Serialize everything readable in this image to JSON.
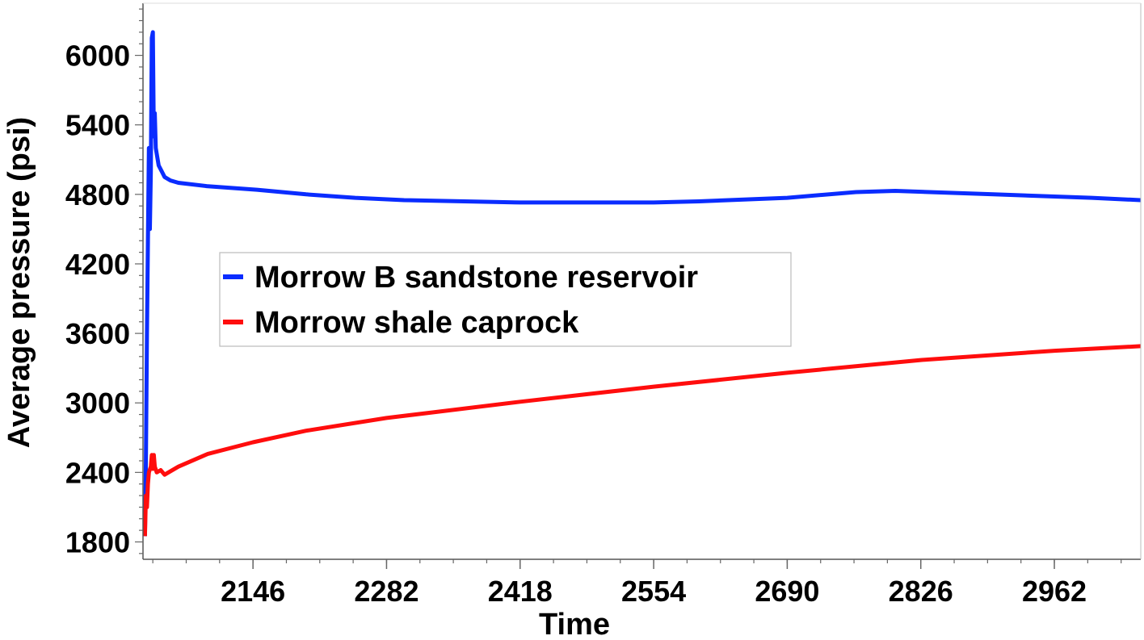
{
  "chart_data": {
    "type": "line",
    "xlabel": "Time",
    "ylabel": "Average pressure (psi)",
    "xlim": [
      2034,
      3050
    ],
    "ylim": [
      1650,
      6450
    ],
    "x_ticks": [
      2146,
      2282,
      2418,
      2554,
      2690,
      2826,
      2962
    ],
    "y_ticks": [
      1800,
      2400,
      3000,
      3600,
      4200,
      4800,
      5400,
      6000
    ],
    "grid": false,
    "legend_position": "center-left",
    "series": [
      {
        "name": "Morrow B sandstone reservoir",
        "color": "#0a2cff",
        "points": [
          [
            2036,
            1850
          ],
          [
            2037,
            2500
          ],
          [
            2038,
            3600
          ],
          [
            2039,
            4400
          ],
          [
            2040,
            5200
          ],
          [
            2041,
            4500
          ],
          [
            2042,
            5000
          ],
          [
            2043,
            6150
          ],
          [
            2044,
            6200
          ],
          [
            2045,
            5300
          ],
          [
            2046,
            5500
          ],
          [
            2047,
            5200
          ],
          [
            2048,
            5150
          ],
          [
            2050,
            5050
          ],
          [
            2053,
            5000
          ],
          [
            2056,
            4950
          ],
          [
            2062,
            4920
          ],
          [
            2070,
            4900
          ],
          [
            2100,
            4870
          ],
          [
            2150,
            4840
          ],
          [
            2200,
            4800
          ],
          [
            2250,
            4770
          ],
          [
            2300,
            4750
          ],
          [
            2418,
            4730
          ],
          [
            2554,
            4730
          ],
          [
            2600,
            4740
          ],
          [
            2690,
            4770
          ],
          [
            2760,
            4820
          ],
          [
            2800,
            4830
          ],
          [
            2900,
            4800
          ],
          [
            3000,
            4770
          ],
          [
            3050,
            4750
          ]
        ]
      },
      {
        "name": "Morrow shale caprock",
        "color": "#ff0d0d",
        "points": [
          [
            2036,
            1850
          ],
          [
            2037,
            2200
          ],
          [
            2038,
            2100
          ],
          [
            2039,
            2300
          ],
          [
            2040,
            2400
          ],
          [
            2042,
            2450
          ],
          [
            2043,
            2550
          ],
          [
            2044,
            2430
          ],
          [
            2045,
            2550
          ],
          [
            2046,
            2450
          ],
          [
            2048,
            2400
          ],
          [
            2052,
            2420
          ],
          [
            2056,
            2380
          ],
          [
            2060,
            2400
          ],
          [
            2070,
            2450
          ],
          [
            2100,
            2560
          ],
          [
            2146,
            2660
          ],
          [
            2200,
            2760
          ],
          [
            2282,
            2870
          ],
          [
            2418,
            3010
          ],
          [
            2554,
            3140
          ],
          [
            2690,
            3260
          ],
          [
            2826,
            3370
          ],
          [
            2962,
            3450
          ],
          [
            3050,
            3490
          ]
        ]
      }
    ]
  }
}
